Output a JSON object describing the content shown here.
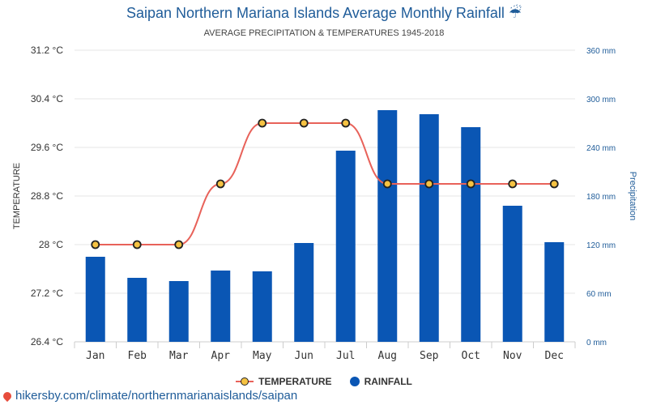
{
  "chart_data": {
    "type": "bar+line",
    "title": "Saipan Northern Mariana Islands Average Monthly Rainfall ☔",
    "subtitle": "AVERAGE PRECIPITATION & TEMPERATURES 1945-2018",
    "categories": [
      "Jan",
      "Feb",
      "Mar",
      "Apr",
      "May",
      "Jun",
      "Jul",
      "Aug",
      "Sep",
      "Oct",
      "Nov",
      "Dec"
    ],
    "series": [
      {
        "name": "TEMPERATURE",
        "kind": "line",
        "axis": "left",
        "values": [
          28,
          28,
          28,
          29,
          30,
          30,
          30,
          29,
          29,
          29,
          29,
          29
        ],
        "color": "#e8625a",
        "marker_color": "#f5c242"
      },
      {
        "name": "RAINFALL",
        "kind": "bar",
        "axis": "right",
        "values": [
          105,
          79,
          75,
          88,
          87,
          122,
          236,
          286,
          281,
          265,
          168,
          123
        ],
        "color": "#0a56b4"
      }
    ],
    "ylabel_left": "TEMPERATURE",
    "ylabel_right": "Precipitation",
    "y_left": {
      "min": 26.4,
      "max": 31.2,
      "ticks": [
        "31.2 °C",
        "30.4 °C",
        "29.6 °C",
        "28.8 °C",
        "28 °C",
        "27.2 °C",
        "26.4 °C"
      ]
    },
    "y_right": {
      "min": 0,
      "max": 360,
      "ticks": [
        "360 mm",
        "300 mm",
        "240 mm",
        "180 mm",
        "120 mm",
        "60 mm",
        "0 mm"
      ]
    },
    "grid": true,
    "legend_position": "bottom-center"
  },
  "footer": {
    "url": "hikersby.com/climate/northernmarianaislands/saipan"
  }
}
